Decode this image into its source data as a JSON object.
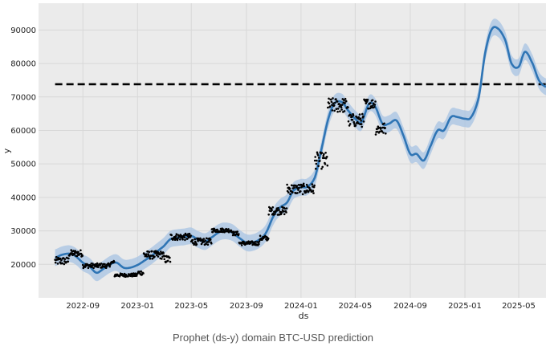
{
  "caption": "Prophet (ds-y) domain BTC-USD prediction",
  "chart_data": {
    "type": "line",
    "xlabel": "ds",
    "ylabel": "y",
    "x_tick_labels": [
      "2022-09",
      "2023-01",
      "2023-05",
      "2023-09",
      "2024-01",
      "2024-05",
      "2024-09",
      "2025-01",
      "2025-05"
    ],
    "x_ticks": [
      "2022-09-01",
      "2023-01-01",
      "2023-05-01",
      "2023-09-01",
      "2024-01-01",
      "2024-05-01",
      "2024-09-01",
      "2025-01-01",
      "2025-05-01"
    ],
    "y_ticks": [
      20000,
      30000,
      40000,
      50000,
      60000,
      70000,
      80000,
      90000
    ],
    "xlim": [
      "2022-05-25",
      "2025-07-01"
    ],
    "ylim": [
      10000,
      98000
    ],
    "grid": true,
    "colors": {
      "forecast": "#2f75b5",
      "band": "#a7c3e3",
      "observed": "#000000",
      "reference": "#000000",
      "background": "#ebebeb"
    },
    "reference_line": {
      "y": 73800,
      "x_start": "2022-07-01",
      "x_end": "2025-07-01",
      "style": "dashed"
    },
    "forecast": {
      "name": "yhat",
      "points": [
        [
          "2022-07-01",
          22000
        ],
        [
          "2022-07-15",
          22800
        ],
        [
          "2022-08-01",
          23200
        ],
        [
          "2022-08-15",
          22500
        ],
        [
          "2022-09-01",
          20500
        ],
        [
          "2022-09-15",
          19500
        ],
        [
          "2022-10-01",
          17500
        ],
        [
          "2022-10-15",
          18500
        ],
        [
          "2022-11-01",
          20000
        ],
        [
          "2022-11-15",
          20500
        ],
        [
          "2022-12-01",
          19000
        ],
        [
          "2022-12-15",
          19000
        ],
        [
          "2023-01-01",
          19800
        ],
        [
          "2023-01-15",
          21000
        ],
        [
          "2023-02-01",
          22500
        ],
        [
          "2023-02-15",
          24000
        ],
        [
          "2023-03-01",
          25500
        ],
        [
          "2023-03-15",
          27500
        ],
        [
          "2023-04-01",
          28000
        ],
        [
          "2023-04-15",
          28200
        ],
        [
          "2023-05-01",
          28500
        ],
        [
          "2023-05-15",
          27500
        ],
        [
          "2023-06-01",
          26800
        ],
        [
          "2023-06-15",
          28000
        ],
        [
          "2023-07-01",
          29500
        ],
        [
          "2023-07-15",
          30000
        ],
        [
          "2023-08-01",
          29500
        ],
        [
          "2023-08-15",
          28000
        ],
        [
          "2023-09-01",
          26500
        ],
        [
          "2023-09-15",
          26500
        ],
        [
          "2023-10-01",
          27500
        ],
        [
          "2023-10-15",
          29500
        ],
        [
          "2023-11-01",
          34500
        ],
        [
          "2023-11-15",
          37000
        ],
        [
          "2023-12-01",
          38500
        ],
        [
          "2023-12-15",
          42000
        ],
        [
          "2024-01-01",
          43000
        ],
        [
          "2024-01-15",
          43200
        ],
        [
          "2024-02-01",
          46000
        ],
        [
          "2024-02-15",
          54000
        ],
        [
          "2024-03-01",
          63000
        ],
        [
          "2024-03-15",
          68000
        ],
        [
          "2024-04-01",
          68500
        ],
        [
          "2024-04-15",
          66000
        ],
        [
          "2024-05-01",
          63500
        ],
        [
          "2024-05-15",
          62500
        ],
        [
          "2024-06-01",
          68000
        ],
        [
          "2024-06-15",
          67000
        ],
        [
          "2024-07-01",
          62000
        ],
        [
          "2024-07-15",
          62000
        ],
        [
          "2024-08-01",
          63000
        ],
        [
          "2024-08-15",
          59000
        ],
        [
          "2024-09-01",
          53000
        ],
        [
          "2024-09-15",
          53000
        ],
        [
          "2024-10-01",
          51000
        ],
        [
          "2024-10-15",
          55000
        ],
        [
          "2024-11-01",
          60000
        ],
        [
          "2024-11-15",
          60000
        ],
        [
          "2024-12-01",
          64000
        ],
        [
          "2024-12-15",
          64000
        ],
        [
          "2025-01-01",
          63500
        ],
        [
          "2025-01-15",
          64000
        ],
        [
          "2025-02-01",
          70000
        ],
        [
          "2025-02-15",
          83000
        ],
        [
          "2025-03-01",
          90000
        ],
        [
          "2025-03-15",
          90500
        ],
        [
          "2025-04-01",
          87000
        ],
        [
          "2025-04-15",
          80000
        ],
        [
          "2025-05-01",
          79000
        ],
        [
          "2025-05-15",
          83500
        ],
        [
          "2025-06-01",
          80000
        ],
        [
          "2025-06-15",
          75000
        ],
        [
          "2025-07-01",
          73000
        ]
      ],
      "band_halfwidth": 2500
    },
    "observed": {
      "name": "y",
      "segments": [
        {
          "start": "2022-07-01",
          "end": "2022-07-31",
          "base": 21000,
          "noise": 1200
        },
        {
          "start": "2022-08-01",
          "end": "2022-08-31",
          "base": 23300,
          "noise": 1000
        },
        {
          "start": "2022-09-01",
          "end": "2022-10-31",
          "base": 19600,
          "noise": 700
        },
        {
          "start": "2022-11-01",
          "end": "2022-11-10",
          "base": 20500,
          "noise": 600
        },
        {
          "start": "2022-11-11",
          "end": "2022-12-31",
          "base": 16800,
          "noise": 500
        },
        {
          "start": "2023-01-01",
          "end": "2023-01-14",
          "base": 17500,
          "noise": 700
        },
        {
          "start": "2023-01-15",
          "end": "2023-02-28",
          "base": 22800,
          "noise": 1200
        },
        {
          "start": "2023-03-01",
          "end": "2023-03-15",
          "base": 21500,
          "noise": 1200
        },
        {
          "start": "2023-03-16",
          "end": "2023-04-30",
          "base": 28200,
          "noise": 1000
        },
        {
          "start": "2023-05-01",
          "end": "2023-06-15",
          "base": 26800,
          "noise": 1000
        },
        {
          "start": "2023-06-16",
          "end": "2023-07-31",
          "base": 30200,
          "noise": 600
        },
        {
          "start": "2023-08-01",
          "end": "2023-08-15",
          "base": 29200,
          "noise": 600
        },
        {
          "start": "2023-08-16",
          "end": "2023-09-30",
          "base": 26300,
          "noise": 600
        },
        {
          "start": "2023-10-01",
          "end": "2023-10-20",
          "base": 27800,
          "noise": 800
        },
        {
          "start": "2023-10-21",
          "end": "2023-11-30",
          "base": 36000,
          "noise": 1200
        },
        {
          "start": "2023-12-01",
          "end": "2024-01-31",
          "base": 42500,
          "noise": 1600
        },
        {
          "start": "2024-02-01",
          "end": "2024-02-29",
          "base": 51000,
          "noise": 2500
        },
        {
          "start": "2024-03-01",
          "end": "2024-04-15",
          "base": 67500,
          "noise": 2200
        },
        {
          "start": "2024-04-16",
          "end": "2024-05-20",
          "base": 63000,
          "noise": 2000
        },
        {
          "start": "2024-05-21",
          "end": "2024-06-15",
          "base": 68000,
          "noise": 1500
        },
        {
          "start": "2024-06-16",
          "end": "2024-07-08",
          "base": 60500,
          "noise": 1800
        }
      ]
    }
  }
}
